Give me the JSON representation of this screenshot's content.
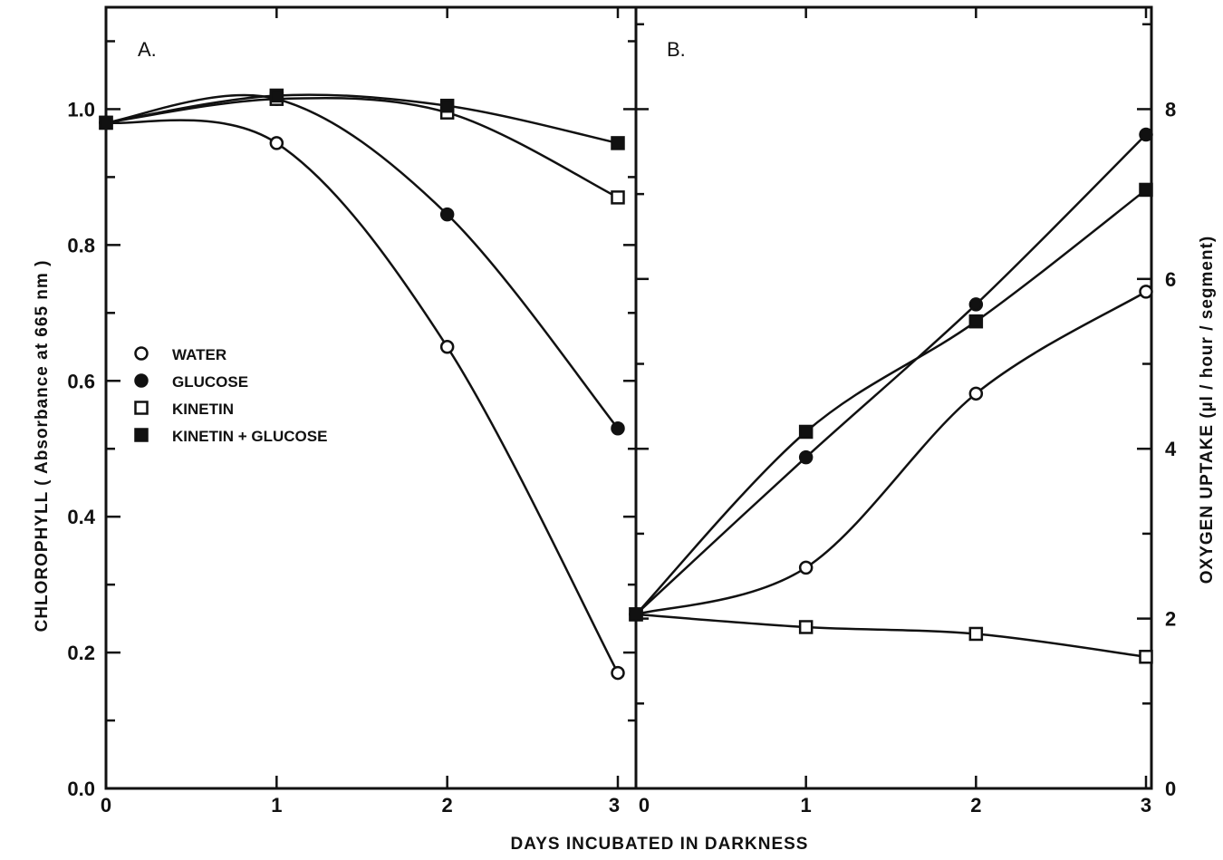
{
  "chart_data": {
    "type": "line",
    "xlabel": "DAYS INCUBATED IN DARKNESS",
    "legend": {
      "placement": "left-middle of panel A",
      "entries": [
        {
          "label": "WATER",
          "marker": "open-circle"
        },
        {
          "label": "GLUCOSE",
          "marker": "filled-circle"
        },
        {
          "label": "KINETIN",
          "marker": "open-square"
        },
        {
          "label": "KINETIN + GLUCOSE",
          "marker": "filled-square"
        }
      ]
    },
    "panels": [
      {
        "label": "A.",
        "ylabel": "CHLOROPHYLL   ( Absorbance at 665 nm )",
        "ylim": [
          0,
          1.15
        ],
        "yticks": [
          "0.0",
          "0.2",
          "0.4",
          "0.6",
          "0.8",
          "1.0"
        ],
        "ytick_values": [
          0.0,
          0.2,
          0.4,
          0.6,
          0.8,
          1.0
        ],
        "xticks": [
          "0",
          "1",
          "2",
          "3"
        ],
        "xlim": [
          0,
          3
        ],
        "x": [
          0,
          1,
          2,
          3
        ],
        "series": [
          {
            "name": "WATER",
            "marker": "open-circle",
            "values": [
              0.98,
              0.95,
              0.65,
              0.17
            ]
          },
          {
            "name": "GLUCOSE",
            "marker": "filled-circle",
            "values": [
              0.98,
              1.015,
              0.845,
              0.53
            ]
          },
          {
            "name": "KINETIN",
            "marker": "open-square",
            "values": [
              0.98,
              1.015,
              0.995,
              0.87
            ]
          },
          {
            "name": "KINETIN + GLUCOSE",
            "marker": "filled-square",
            "values": [
              0.98,
              1.02,
              1.005,
              0.95
            ]
          }
        ]
      },
      {
        "label": "B.",
        "ylabel": "OXYGEN   UPTAKE   (µl / hour / segment)",
        "ylim": [
          0,
          9.2
        ],
        "yticks": [
          "0",
          "2",
          "4",
          "6",
          "8"
        ],
        "ytick_values": [
          0,
          2,
          4,
          6,
          8
        ],
        "xticks": [
          "0",
          "1",
          "2",
          "3"
        ],
        "xlim": [
          0,
          3
        ],
        "x": [
          0,
          1,
          2,
          3
        ],
        "series": [
          {
            "name": "WATER",
            "marker": "open-circle",
            "values": [
              2.05,
              2.6,
              4.65,
              5.85
            ]
          },
          {
            "name": "GLUCOSE",
            "marker": "filled-circle",
            "values": [
              2.05,
              3.9,
              5.7,
              7.7
            ]
          },
          {
            "name": "KINETIN",
            "marker": "open-square",
            "values": [
              2.05,
              1.9,
              1.82,
              1.55
            ]
          },
          {
            "name": "KINETIN + GLUCOSE",
            "marker": "filled-square",
            "values": [
              2.05,
              4.2,
              5.5,
              7.05
            ]
          }
        ]
      }
    ]
  }
}
